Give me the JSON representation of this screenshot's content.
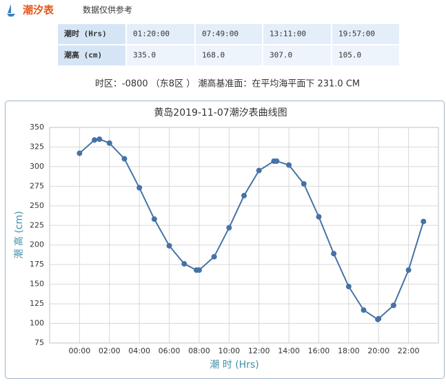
{
  "header": {
    "title": "潮汐表",
    "subtitle": "数据仅供参考"
  },
  "table": {
    "rows": [
      [
        "潮时 (Hrs)",
        "01:20:00",
        "07:49:00",
        "13:11:00",
        "19:57:00"
      ],
      [
        "潮高 (cm)",
        "335.0",
        "168.0",
        "307.0",
        "105.0"
      ]
    ]
  },
  "note": "时区：-0800 （东8区 ） 潮高基准面：在平均海平面下 231.0 CM",
  "chart_data": {
    "type": "line",
    "title": "黄岛2019-11-07潮汐表曲线图",
    "x_label": "潮 时 (Hrs)",
    "y_label": "潮 高 (cm)",
    "x": [
      0,
      1,
      1.333,
      2,
      3,
      4,
      5,
      6,
      7,
      7.817,
      8,
      9,
      10,
      11,
      12,
      13,
      13.183,
      14,
      15,
      16,
      17,
      18,
      19,
      19.95,
      20,
      21,
      22,
      23
    ],
    "values": [
      317,
      334,
      335,
      330,
      310,
      273,
      233,
      199,
      176,
      168,
      168,
      185,
      222,
      263,
      295,
      307,
      307,
      302,
      278,
      236,
      189,
      147,
      117,
      105,
      106,
      123,
      168,
      230
    ],
    "color": "#4572a7",
    "xlim": [
      -2,
      24
    ],
    "xticks": [
      {
        "value": 0,
        "label": "00:00"
      },
      {
        "value": 2,
        "label": "02:00"
      },
      {
        "value": 4,
        "label": "04:00"
      },
      {
        "value": 6,
        "label": "06:00"
      },
      {
        "value": 8,
        "label": "08:00"
      },
      {
        "value": 10,
        "label": "10:00"
      },
      {
        "value": 12,
        "label": "12:00"
      },
      {
        "value": 14,
        "label": "14:00"
      },
      {
        "value": 16,
        "label": "16:00"
      },
      {
        "value": 18,
        "label": "18:00"
      },
      {
        "value": 20,
        "label": "20:00"
      },
      {
        "value": 22,
        "label": "22:00"
      }
    ],
    "ylim": [
      75,
      350
    ],
    "yticks": [
      75,
      100,
      125,
      150,
      175,
      200,
      225,
      250,
      275,
      300,
      325,
      350
    ],
    "grid": true
  }
}
